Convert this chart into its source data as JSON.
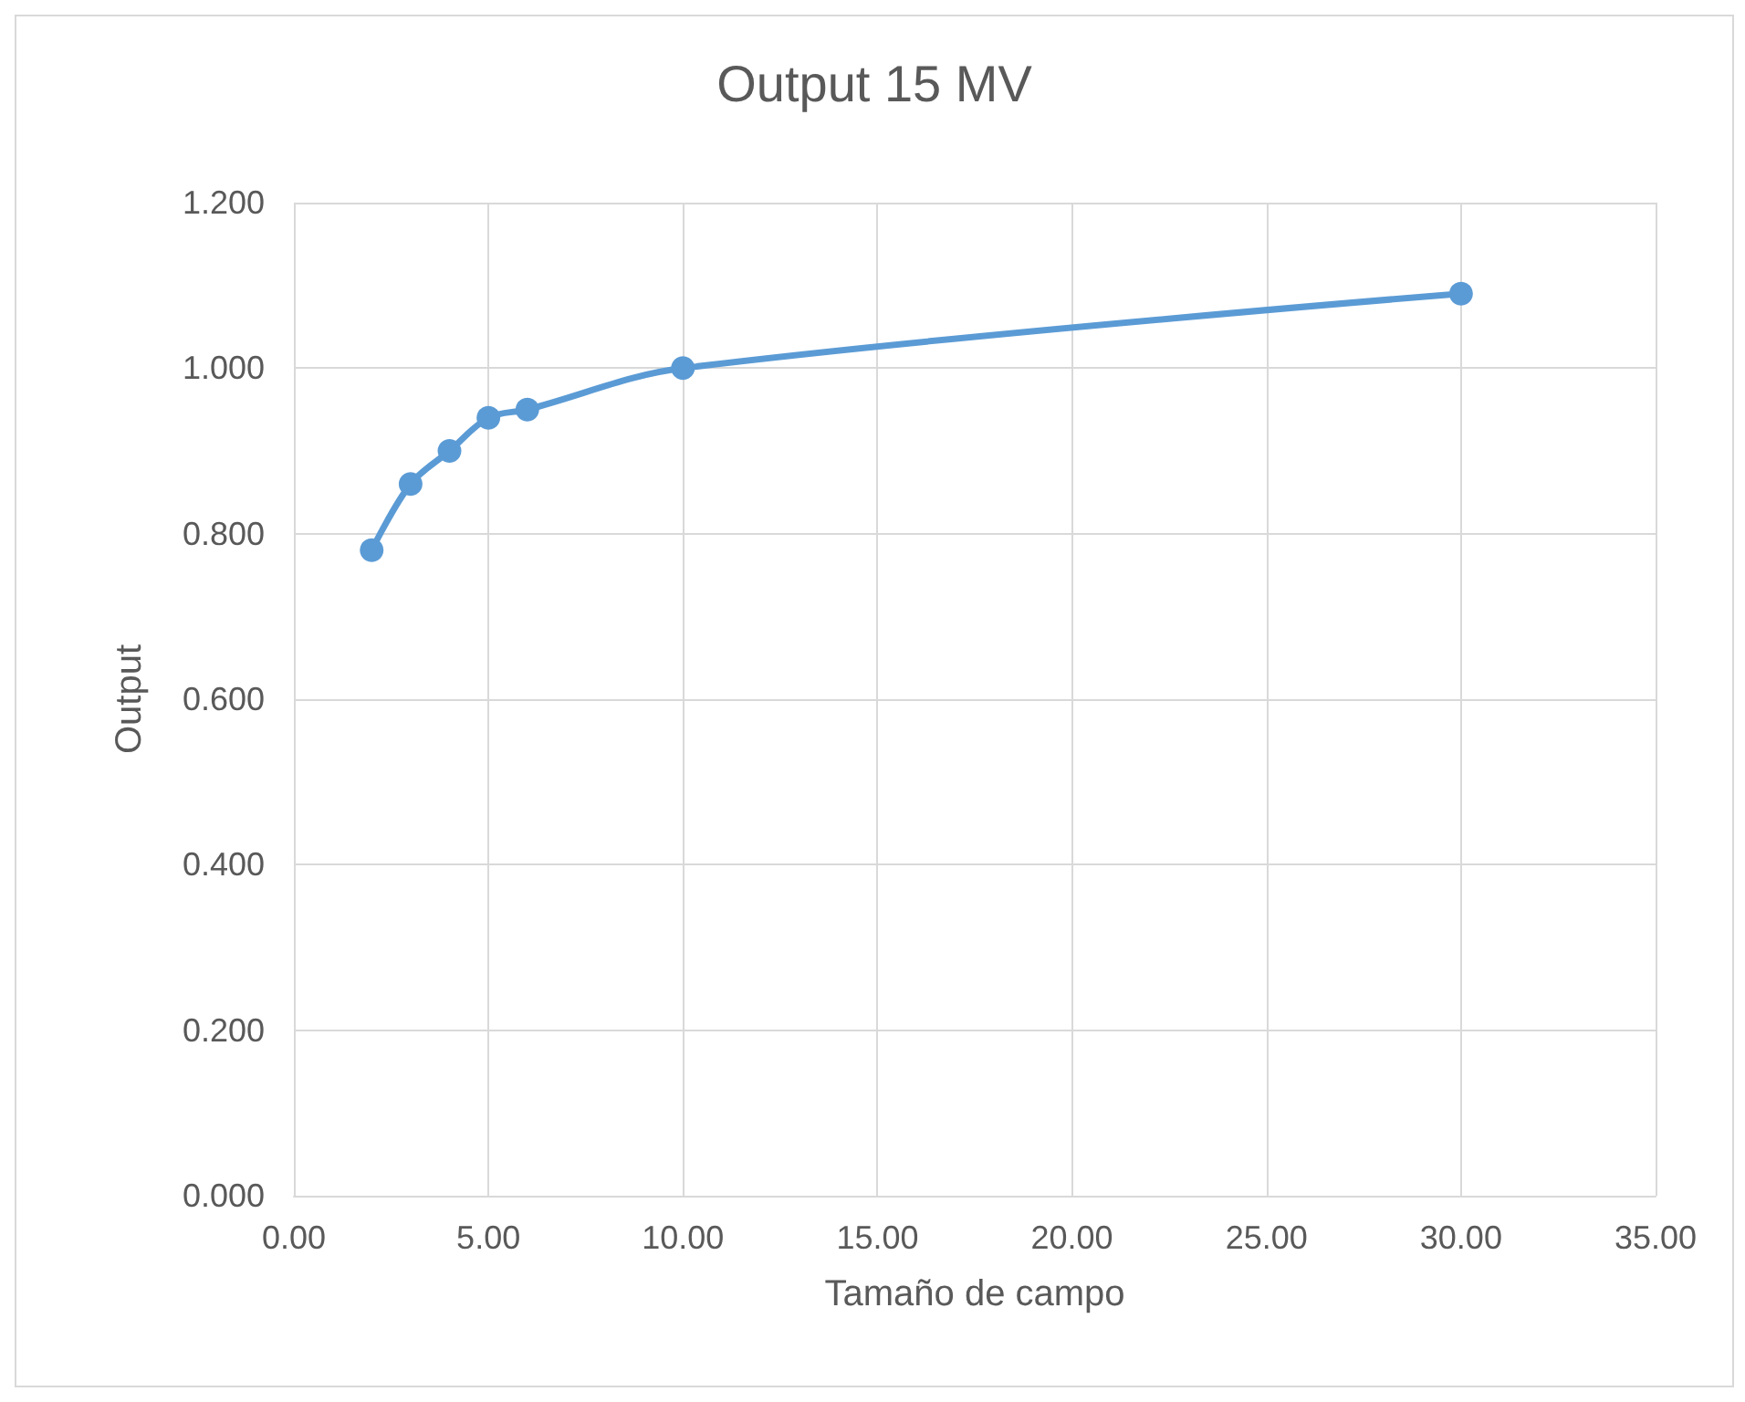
{
  "chart_data": {
    "type": "line",
    "title": "Output 15 MV",
    "xlabel": "Tamaño de campo",
    "ylabel": "Output",
    "x": [
      2,
      3,
      4,
      5,
      6,
      10,
      30
    ],
    "series": [
      {
        "color": "#5b9bd5",
        "values": [
          0.78,
          0.86,
          0.9,
          0.94,
          0.95,
          1.0,
          1.09
        ]
      }
    ],
    "xlim": [
      0,
      35
    ],
    "xticks": [
      {
        "value": 0,
        "label": "0.00"
      },
      {
        "value": 5,
        "label": "5.00"
      },
      {
        "value": 10,
        "label": "10.00"
      },
      {
        "value": 15,
        "label": "15.00"
      },
      {
        "value": 20,
        "label": "20.00"
      },
      {
        "value": 25,
        "label": "25.00"
      },
      {
        "value": 30,
        "label": "30.00"
      },
      {
        "value": 35,
        "label": "35.00"
      }
    ],
    "ylim": [
      0,
      1.2
    ],
    "yticks": [
      {
        "value": 0,
        "label": "0.000"
      },
      {
        "value": 0.2,
        "label": "0.200"
      },
      {
        "value": 0.4,
        "label": "0.400"
      },
      {
        "value": 0.6,
        "label": "0.600"
      },
      {
        "value": 0.8,
        "label": "0.800"
      },
      {
        "value": 1,
        "label": "1.000"
      },
      {
        "value": 1.2,
        "label": "1.200"
      }
    ],
    "grid": true,
    "marker": "circle",
    "line_style": "solid"
  }
}
